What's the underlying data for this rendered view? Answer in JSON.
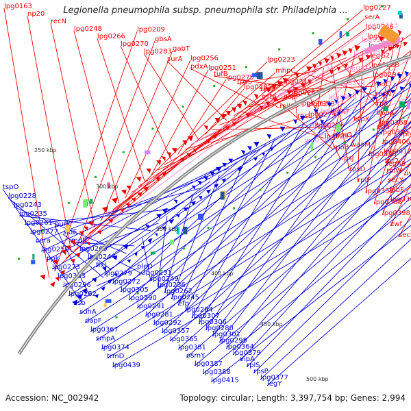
{
  "title": "Legionella pneumophila subsp. pneumophila str. Philadelphia ...",
  "footer": {
    "accession": "Accession: NC_002942",
    "summary": "Topology: circular; Length: 3,397,754 bp; Genes: 2,994"
  },
  "colors": {
    "forward": "#ee0000",
    "reverse": "#0000dd",
    "highlight": "#ff88cc",
    "backbone": "#888888"
  },
  "ticks": [
    "250 kbp",
    "300 kbp",
    "350 kbp",
    "400 kbp",
    "450 kbp",
    "500 kbp"
  ],
  "red_labels": [
    "lpg0163",
    "lpg0209",
    "lpg0223",
    "lpg0227",
    "np20",
    "gbsA",
    "mhpC",
    "serA",
    "recN",
    "gabT",
    "lpg0247",
    "lpg0246",
    "lpg0248",
    "lpg0256",
    "lpg0264",
    "lpg0260",
    "lpg0266",
    "lpg0251",
    "lpg0263",
    "lpg0268",
    "lpg0270",
    "lpg0275",
    "lpg0274",
    "legG2",
    "lpg0283",
    "lpg0285",
    "lpg0286",
    "lpg0288",
    "surA",
    "ostA",
    "lpg0293",
    "lpg0294",
    "pdxA",
    "rplK",
    "rpoB",
    "rpoC",
    "tufB",
    "rpsL",
    "rpsJ",
    "rpsN",
    "rpsS",
    "rpsC",
    "rpsD",
    "rplL",
    "rpsE",
    "rpmC",
    "rplP",
    "rpoA",
    "acpP",
    "waaM",
    "lpg0358",
    "lpg0368",
    "lpg0373",
    "lpg0375",
    "lpg0385",
    "lpg0393",
    "legA7",
    "legA9",
    "lpg0398",
    "lpg0406",
    "htpX",
    "uvrA",
    "zwf",
    "lpg0412",
    "eda",
    "oprM",
    "secE",
    "tuf2",
    "rplV",
    "rpsH",
    "rplB",
    "rplW",
    "rpmJ",
    "rplD",
    "rplC",
    "secY",
    "rpsQ",
    "fusA",
    "rplO",
    "fabF",
    "fabA",
    "lpg0371",
    "lpg0370",
    "lpg0369"
  ],
  "pink_labels": [
    "lpg0313",
    "lpg0312",
    "lpg0311",
    "lpg0310",
    "lpg0302",
    "lpg0304",
    "lpg0303",
    "lpg0309",
    "lpg0315"
  ],
  "blue_labels": [
    "tspO",
    "purK",
    "pleD",
    "lpg0228",
    "sidE",
    "lpg0231",
    "lpg0243",
    "mdlC",
    "lpg0249",
    "lpg0235",
    "lpg0265",
    "lpg0236",
    "lpg0261",
    "lpg0244",
    "lpg0262",
    "lpg0277",
    "fixL",
    "lpg0245",
    "cora",
    "lpg0279",
    "efp",
    "lpg0250",
    "lpg0272",
    "lpg0284",
    "ppk",
    "lpg0305",
    "lpg0307",
    "lpg0273",
    "lpg0290",
    "lpg0306",
    "lpg0333",
    "lpg0291",
    "lpg0280",
    "lpg0296",
    "lpg0281",
    "lpg0301",
    "lpg0282",
    "lpg0292",
    "lpg0295",
    "ssb",
    "lpg0357",
    "lpg0364",
    "sdhA",
    "lpg0365",
    "lpg0379",
    "dapF",
    "lpg0381",
    "vipA",
    "lpg0367",
    "osmY",
    "rplS",
    "smpA",
    "lpg0387",
    "rpsP",
    "lpg0374",
    "lpg0388",
    "lpg0377",
    "trmD",
    "lpg0415",
    "legY",
    "lpg0439"
  ]
}
